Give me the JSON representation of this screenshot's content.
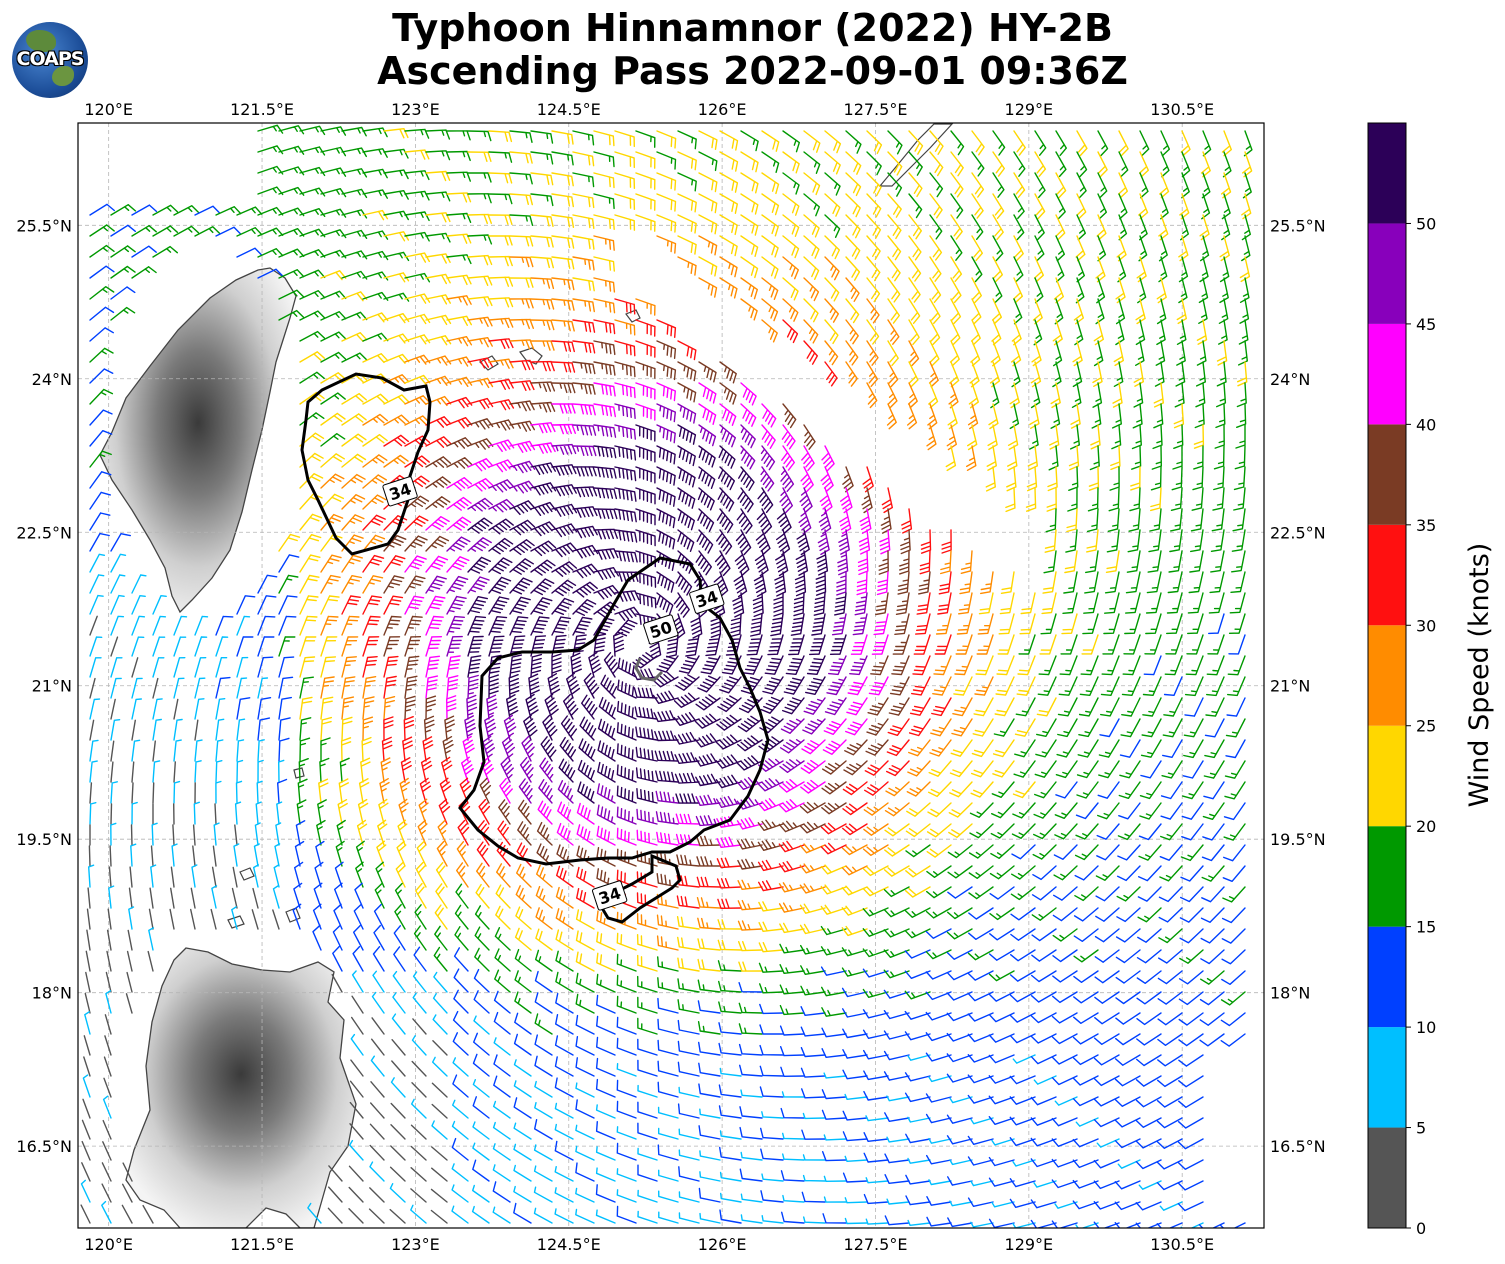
{
  "title": {
    "line1": "Typhoon Hinnamnor (2022) HY-2B",
    "line2": "Ascending Pass 2022-09-01 09:36Z"
  },
  "logo": {
    "text": "COAPS",
    "icon": "coaps-globe-logo"
  },
  "map": {
    "lon_range": [
      119.7,
      131.3
    ],
    "lat_range": [
      15.7,
      26.5
    ],
    "lon_ticks": [
      "120°E",
      "121.5°E",
      "123°E",
      "124.5°E",
      "126°E",
      "127.5°E",
      "129°E",
      "130.5°E"
    ],
    "lon_tick_values": [
      120,
      121.5,
      123,
      124.5,
      126,
      127.5,
      129,
      130.5
    ],
    "lat_ticks": [
      "16.5°N",
      "18°N",
      "19.5°N",
      "21°N",
      "22.5°N",
      "24°N",
      "25.5°N"
    ],
    "lat_tick_values": [
      16.5,
      18,
      19.5,
      21,
      22.5,
      24,
      25.5
    ],
    "gridlines": true,
    "storm_center": {
      "lon": 125.2,
      "lat": 21.4
    },
    "contour_labels": [
      {
        "text": "34",
        "lon": 122.85,
        "lat": 22.9
      },
      {
        "text": "34",
        "lon": 125.85,
        "lat": 21.85
      },
      {
        "text": "50",
        "lon": 125.4,
        "lat": 21.55
      },
      {
        "text": "34",
        "lon": 124.9,
        "lat": 18.95
      }
    ]
  },
  "colorbar": {
    "label": "Wind Speed (knots)",
    "ticks": [
      "0",
      "5",
      "10",
      "15",
      "20",
      "25",
      "30",
      "35",
      "40",
      "45",
      "50"
    ],
    "colors": [
      "#555555",
      "#00bfff",
      "#0040ff",
      "#009900",
      "#ffd700",
      "#ff8c00",
      "#ff1010",
      "#7a3b24",
      "#ff00ff",
      "#8800bb",
      "#2c0058"
    ],
    "levels": [
      0,
      5,
      10,
      15,
      20,
      25,
      30,
      35,
      40,
      45,
      50,
      55
    ]
  }
}
